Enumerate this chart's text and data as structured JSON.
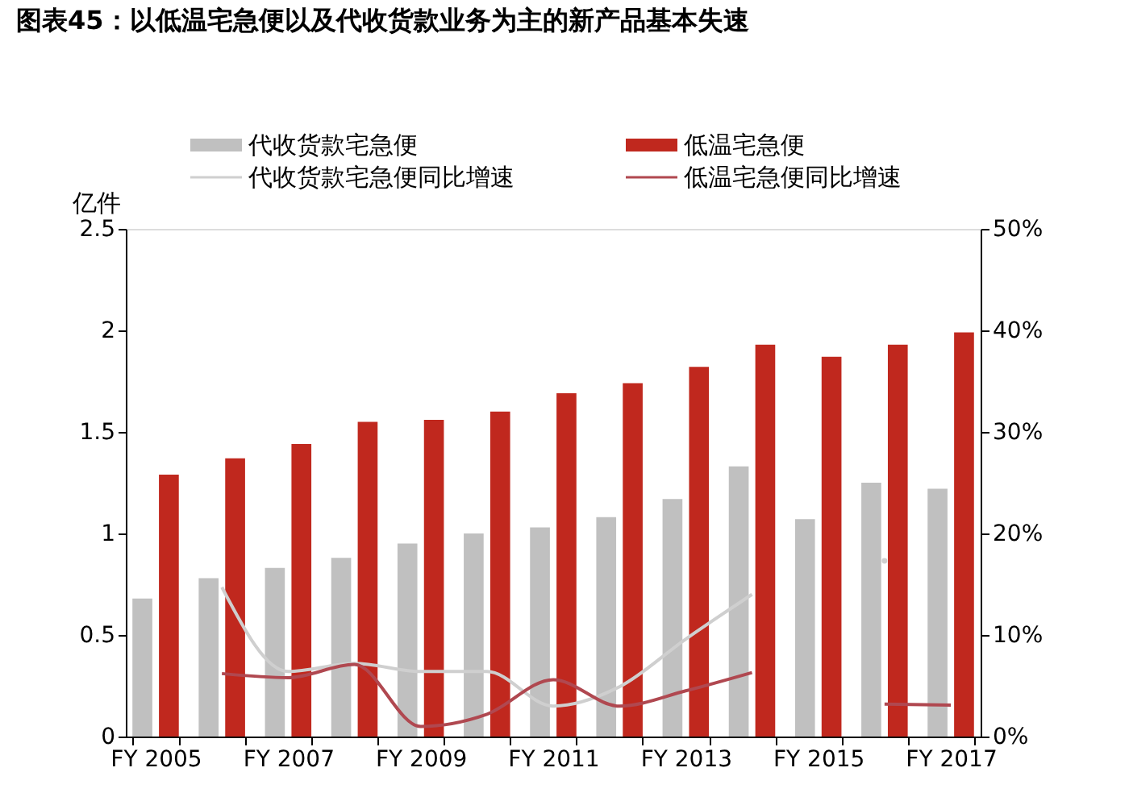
{
  "chart_data": {
    "type": "bar",
    "title": "图表45：以低温宅急便以及代收货款业务为主的新产品基本失速",
    "ylabel": "亿件",
    "categories": [
      "FY 2005",
      null,
      "FY 2007",
      null,
      "FY 2009",
      null,
      "FY 2011",
      null,
      "FY 2013",
      null,
      "FY 2015",
      null,
      "FY 2017"
    ],
    "series": [
      {
        "name": "代收货款宅急便",
        "color": "#c0c0c0",
        "values": [
          0.68,
          0.78,
          0.83,
          0.88,
          0.95,
          1.0,
          1.03,
          1.08,
          1.17,
          1.33,
          1.07,
          1.25,
          1.22
        ]
      },
      {
        "name": "低温宅急便",
        "color": "#c0281e",
        "values": [
          1.29,
          1.37,
          1.44,
          1.55,
          1.56,
          1.6,
          1.69,
          1.74,
          1.82,
          1.93,
          1.87,
          1.93,
          1.99
        ]
      },
      {
        "name": "代收货款宅急便同比增速",
        "type": "line",
        "axis": "y2",
        "color": "#cfcfcf",
        "values": [
          null,
          14.7,
          6.4,
          7.2,
          6.4,
          6.4,
          3.0,
          4.9,
          9.6,
          14.0,
          null,
          17.3,
          null
        ]
      },
      {
        "name": "低温宅急便同比增速",
        "type": "line",
        "axis": "y2",
        "color": "#b04850",
        "values": [
          null,
          6.2,
          5.8,
          7.1,
          1.0,
          2.2,
          5.6,
          3.0,
          4.5,
          6.3,
          null,
          3.2,
          3.1
        ]
      }
    ],
    "ylim": [
      0,
      2.5
    ],
    "yticks": [
      0,
      0.5,
      1,
      1.5,
      2,
      2.5
    ],
    "y2lim": [
      0,
      50
    ],
    "y2ticks": [
      {
        "value": 0,
        "label": "0%"
      },
      {
        "value": 10,
        "label": "10%"
      },
      {
        "value": 20,
        "label": "20%"
      },
      {
        "value": 30,
        "label": "30%"
      },
      {
        "value": 40,
        "label": "40%"
      },
      {
        "value": 50,
        "label": "50%"
      }
    ],
    "legend": "top",
    "grid": false
  }
}
